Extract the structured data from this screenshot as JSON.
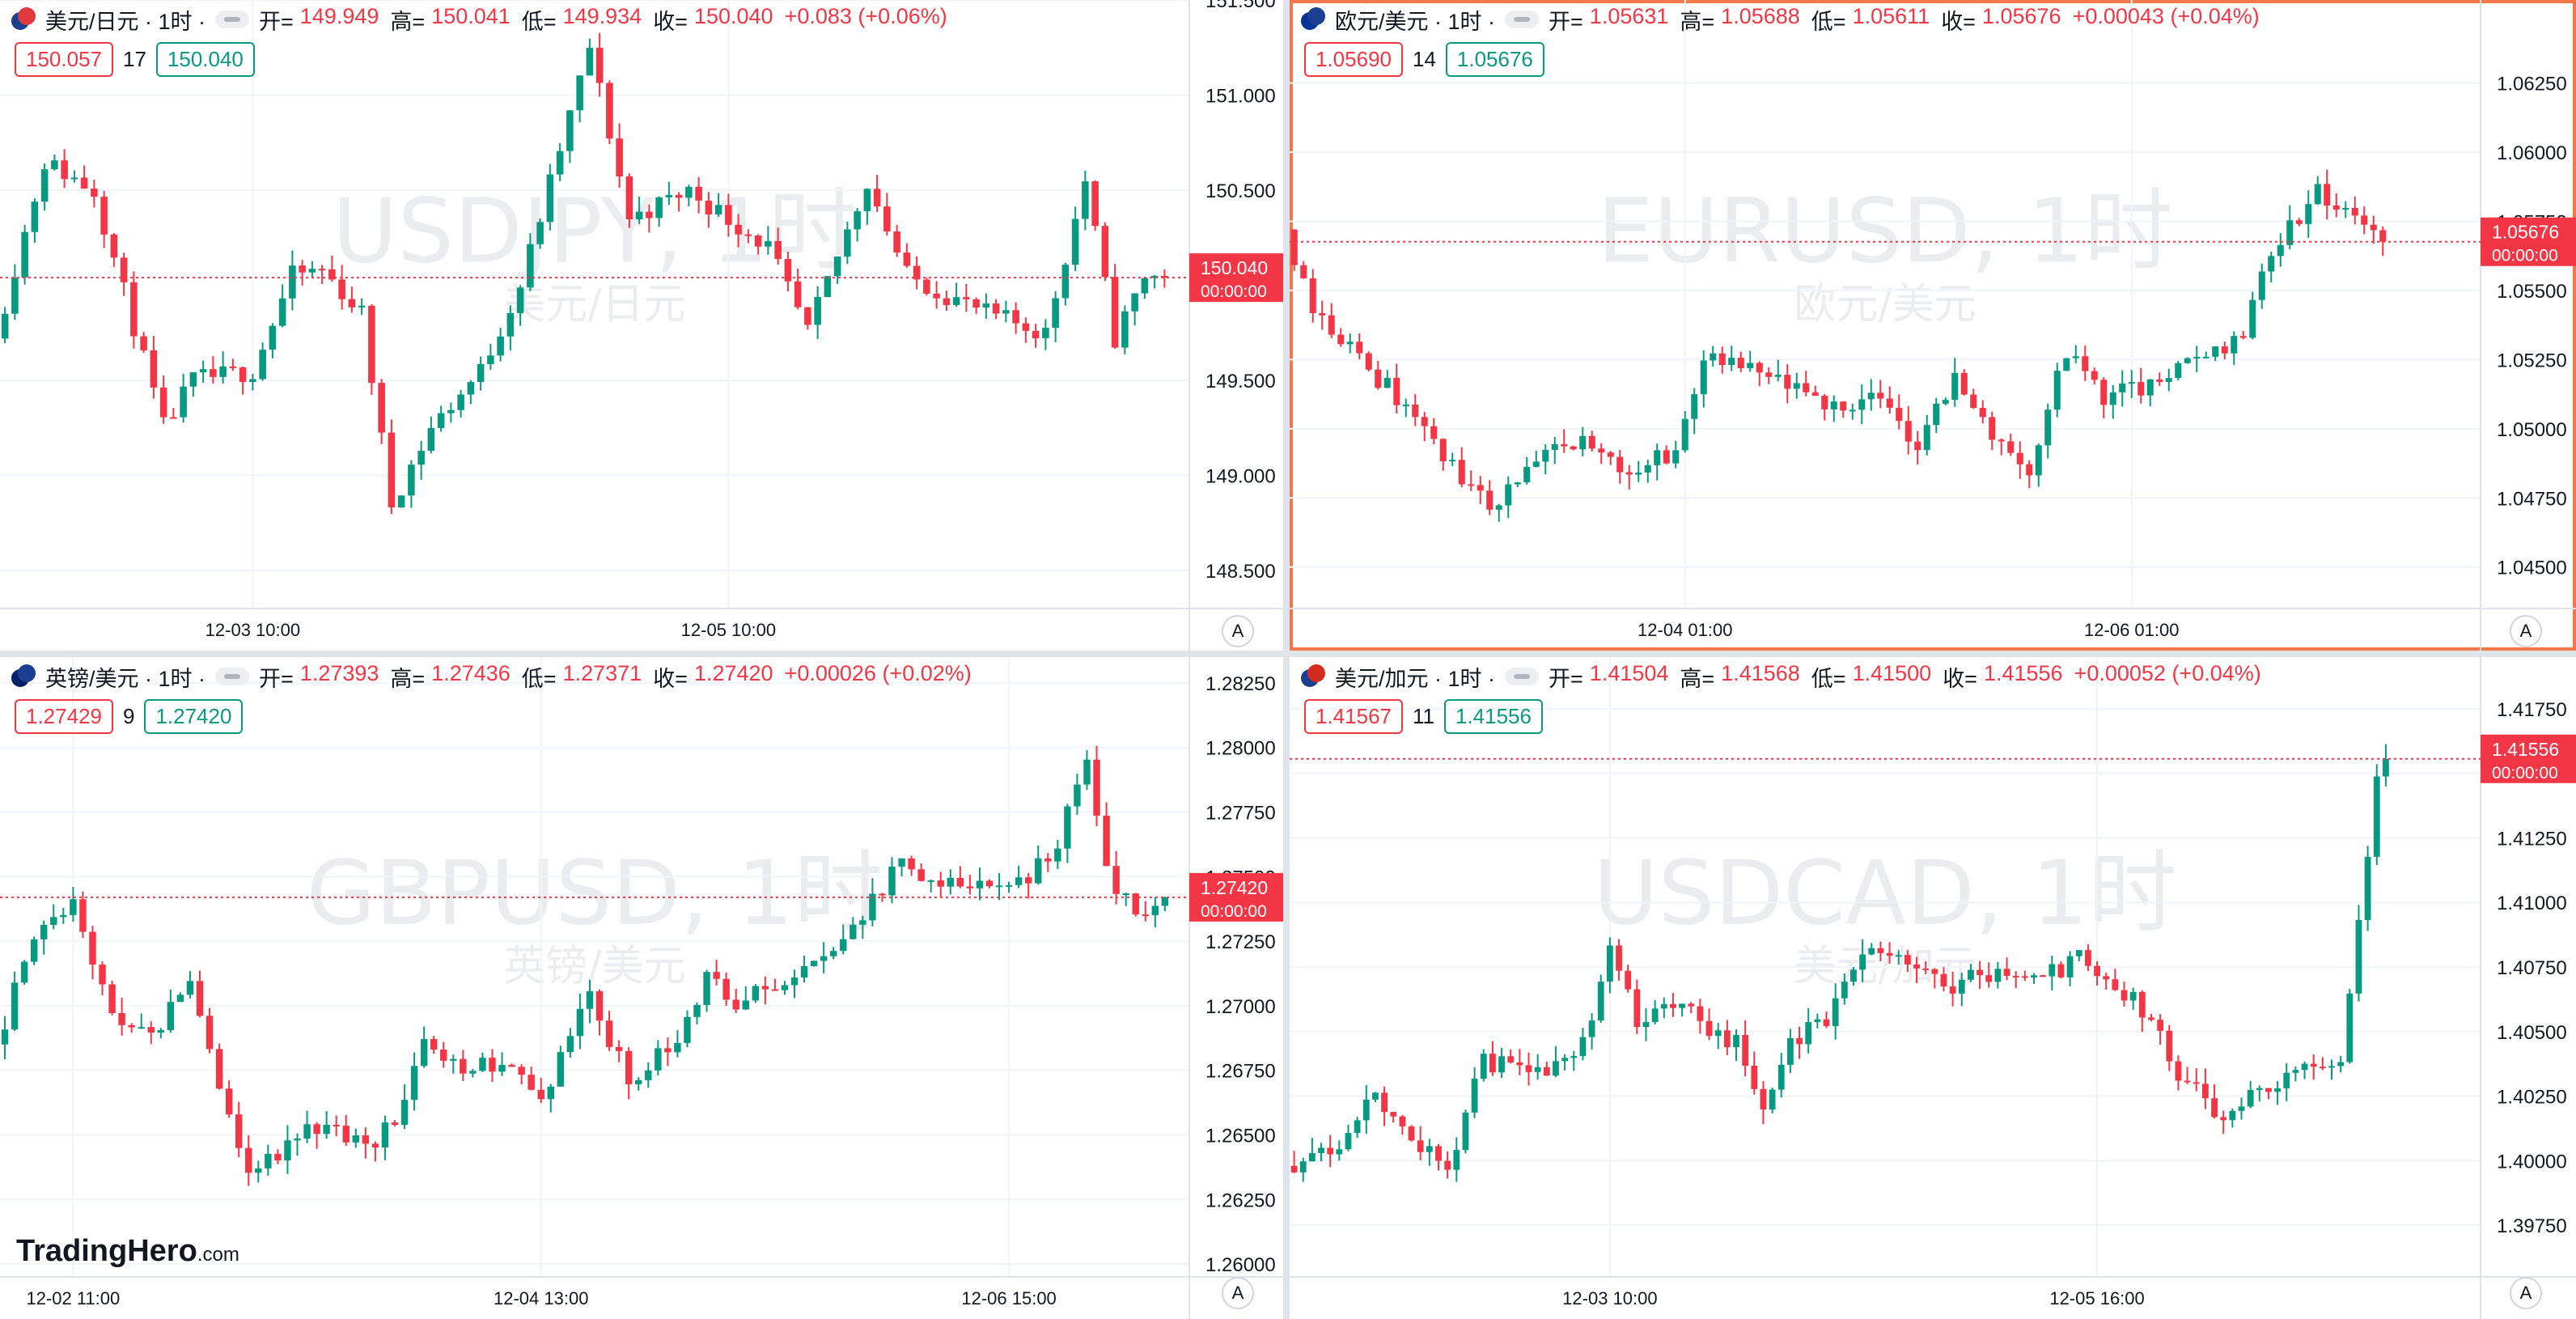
{
  "brand": {
    "name": "TradingHero",
    "suffix": ".com"
  },
  "auto_label": "A",
  "colors": {
    "up": "#089981",
    "down": "#f23645",
    "grid": "#f0f3fa",
    "axis_text": "#131722",
    "watermark": "#ebecef"
  },
  "chart_data": [
    {
      "type": "candlestick",
      "symbol": "USDJPY",
      "title": "美元/日元 · 1时 ·",
      "watermark": "USDJPY, 1时",
      "watermark_sub": "美元/日元",
      "flags": [
        "#1c3f94",
        "#e03a3e"
      ],
      "ohlc": {
        "open_label": "开=",
        "open": "149.949",
        "high_label": "高=",
        "high": "150.041",
        "low_label": "低=",
        "low": "149.934",
        "close_label": "收=",
        "close": "150.040",
        "change": "+0.083 (+0.06%)"
      },
      "bid": "150.057",
      "spread": "17",
      "ask": "150.040",
      "last_price": "150.040",
      "countdown": "00:00:00",
      "ylim": [
        148.3,
        151.5
      ],
      "y_ticks": [
        "151.500",
        "151.000",
        "150.500",
        "149.500",
        "149.000",
        "148.500"
      ],
      "x_ticks": [
        {
          "label": "12-03 10:00",
          "index": 25
        },
        {
          "label": "12-05 10:00",
          "index": 73
        }
      ],
      "candles_shown": 120,
      "bars": 118,
      "start": 149.72,
      "end": 150.04,
      "path": [
        [
          0,
          149.72
        ],
        [
          5,
          150.65
        ],
        [
          10,
          150.5
        ],
        [
          17,
          149.25
        ],
        [
          20,
          149.5
        ],
        [
          26,
          149.55
        ],
        [
          30,
          150.05
        ],
        [
          33,
          150.08
        ],
        [
          37,
          149.85
        ],
        [
          40,
          148.85
        ],
        [
          44,
          149.25
        ],
        [
          49,
          149.55
        ],
        [
          53,
          150.0
        ],
        [
          60,
          151.25
        ],
        [
          64,
          150.35
        ],
        [
          70,
          150.5
        ],
        [
          78,
          150.2
        ],
        [
          82,
          149.75
        ],
        [
          88,
          150.55
        ],
        [
          92,
          150.05
        ],
        [
          96,
          149.95
        ],
        [
          100,
          149.85
        ],
        [
          106,
          149.75
        ],
        [
          110,
          150.55
        ],
        [
          113,
          149.72
        ],
        [
          116,
          150.05
        ],
        [
          118,
          150.04
        ]
      ],
      "seed": 11
    },
    {
      "type": "candlestick",
      "symbol": "EURUSD",
      "title": "欧元/美元 · 1时 ·",
      "watermark": "EURUSD, 1时",
      "watermark_sub": "欧元/美元",
      "flags": [
        "#003399",
        "#1c3f94"
      ],
      "ohlc": {
        "open_label": "开=",
        "open": "1.05631",
        "high_label": "高=",
        "high": "1.05688",
        "low_label": "低=",
        "low": "1.05611",
        "close_label": "收=",
        "close": "1.05676",
        "change": "+0.00043 (+0.04%)"
      },
      "bid": "1.05690",
      "spread": "14",
      "ask": "1.05676",
      "last_price": "1.05676",
      "countdown": "00:00:00",
      "ylim": [
        1.0435,
        1.0655
      ],
      "y_ticks": [
        "1.06250",
        "1.06000",
        "1.05750",
        "1.05500",
        "1.05250",
        "1.05000",
        "1.04750",
        "1.04500"
      ],
      "x_ticks": [
        {
          "label": "12-04 01:00",
          "index": 42
        },
        {
          "label": "12-06 01:00",
          "index": 90
        }
      ],
      "candles_shown": 128,
      "bars": 118,
      "start": 1.0572,
      "end": 1.05676,
      "path": [
        [
          0,
          1.0572
        ],
        [
          3,
          1.0545
        ],
        [
          8,
          1.0525
        ],
        [
          14,
          1.0505
        ],
        [
          18,
          1.0485
        ],
        [
          22,
          1.0472
        ],
        [
          27,
          1.0488
        ],
        [
          32,
          1.0495
        ],
        [
          37,
          1.0485
        ],
        [
          42,
          1.0492
        ],
        [
          45,
          1.0525
        ],
        [
          52,
          1.0518
        ],
        [
          58,
          1.0508
        ],
        [
          63,
          1.0512
        ],
        [
          68,
          1.0495
        ],
        [
          72,
          1.0518
        ],
        [
          76,
          1.0498
        ],
        [
          80,
          1.0485
        ],
        [
          84,
          1.0528
        ],
        [
          88,
          1.0512
        ],
        [
          93,
          1.0515
        ],
        [
          98,
          1.0525
        ],
        [
          103,
          1.0535
        ],
        [
          106,
          1.0565
        ],
        [
          111,
          1.0585
        ],
        [
          116,
          1.0572
        ],
        [
          121,
          1.0575
        ],
        [
          124,
          1.0598
        ],
        [
          126,
          1.0555
        ],
        [
          128,
          1.0548
        ],
        [
          130,
          1.05676
        ]
      ],
      "seed": 23
    },
    {
      "type": "candlestick",
      "symbol": "GBPUSD",
      "title": "英镑/美元 · 1时 ·",
      "watermark": "GBPUSD, 1时",
      "watermark_sub": "英镑/美元",
      "flags": [
        "#012169",
        "#1c3f94"
      ],
      "ohlc": {
        "open_label": "开=",
        "open": "1.27393",
        "high_label": "高=",
        "high": "1.27436",
        "low_label": "低=",
        "low": "1.27371",
        "close_label": "收=",
        "close": "1.27420",
        "change": "+0.00026 (+0.02%)"
      },
      "bid": "1.27429",
      "spread": "9",
      "ask": "1.27420",
      "last_price": "1.27420",
      "countdown": "00:00:00",
      "ylim": [
        1.2595,
        1.2835
      ],
      "y_ticks": [
        "1.28250",
        "1.28000",
        "1.27750",
        "1.27500",
        "1.27250",
        "1.27000",
        "1.26750",
        "1.26500",
        "1.26250",
        "1.26000"
      ],
      "x_ticks": [
        {
          "label": "12-02 11:00",
          "index": 7
        },
        {
          "label": "12-04 13:00",
          "index": 55
        },
        {
          "label": "12-06 15:00",
          "index": 103
        }
      ],
      "candles_shown": 122,
      "bars": 120,
      "start": 1.2685,
      "end": 1.2742,
      "path": [
        [
          0,
          1.2685
        ],
        [
          4,
          1.2725
        ],
        [
          8,
          1.2742
        ],
        [
          12,
          1.2695
        ],
        [
          16,
          1.2688
        ],
        [
          20,
          1.2712
        ],
        [
          23,
          1.2665
        ],
        [
          26,
          1.2638
        ],
        [
          30,
          1.2645
        ],
        [
          34,
          1.2655
        ],
        [
          38,
          1.2645
        ],
        [
          41,
          1.2655
        ],
        [
          44,
          1.2685
        ],
        [
          48,
          1.2675
        ],
        [
          52,
          1.2678
        ],
        [
          56,
          1.2665
        ],
        [
          61,
          1.2702
        ],
        [
          65,
          1.2672
        ],
        [
          69,
          1.2682
        ],
        [
          73,
          1.2712
        ],
        [
          76,
          1.2702
        ],
        [
          82,
          1.2708
        ],
        [
          87,
          1.2725
        ],
        [
          93,
          1.2755
        ],
        [
          99,
          1.2745
        ],
        [
          104,
          1.2748
        ],
        [
          108,
          1.2755
        ],
        [
          112,
          1.2795
        ],
        [
          114,
          1.2755
        ],
        [
          117,
          1.2732
        ],
        [
          120,
          1.2742
        ]
      ],
      "seed": 37
    },
    {
      "type": "candlestick",
      "symbol": "USDCAD",
      "title": "美元/加元 · 1时 ·",
      "watermark": "USDCAD, 1时",
      "watermark_sub": "美元/加元",
      "flags": [
        "#1c3f94",
        "#d52b1e"
      ],
      "ohlc": {
        "open_label": "开=",
        "open": "1.41504",
        "high_label": "高=",
        "high": "1.41568",
        "low_label": "低=",
        "low": "1.41500",
        "close_label": "收=",
        "close": "1.41556",
        "change": "+0.00052 (+0.04%)"
      },
      "bid": "1.41567",
      "spread": "11",
      "ask": "1.41556",
      "last_price": "1.41556",
      "countdown": "00:00:00",
      "ylim": [
        1.3955,
        1.4195
      ],
      "y_ticks": [
        "1.41750",
        "1.41500",
        "1.41250",
        "1.41000",
        "1.40750",
        "1.40500",
        "1.40250",
        "1.40000",
        "1.39750"
      ],
      "x_ticks": [
        {
          "label": "12-03 10:00",
          "index": 35
        },
        {
          "label": "12-05 16:00",
          "index": 89
        }
      ],
      "candles_shown": 132,
      "bars": 122,
      "start": 1.3998,
      "end": 1.41556,
      "path": [
        [
          0,
          1.3998
        ],
        [
          6,
          1.4008
        ],
        [
          10,
          1.4025
        ],
        [
          15,
          1.4005
        ],
        [
          18,
          1.3998
        ],
        [
          22,
          1.4038
        ],
        [
          28,
          1.4035
        ],
        [
          33,
          1.4045
        ],
        [
          36,
          1.4085
        ],
        [
          39,
          1.4055
        ],
        [
          44,
          1.4058
        ],
        [
          50,
          1.4045
        ],
        [
          53,
          1.4018
        ],
        [
          56,
          1.4045
        ],
        [
          60,
          1.4055
        ],
        [
          63,
          1.4078
        ],
        [
          68,
          1.4082
        ],
        [
          73,
          1.4068
        ],
        [
          78,
          1.4072
        ],
        [
          83,
          1.4068
        ],
        [
          88,
          1.4078
        ],
        [
          92,
          1.4068
        ],
        [
          96,
          1.4055
        ],
        [
          99,
          1.4032
        ],
        [
          104,
          1.4018
        ],
        [
          108,
          1.4028
        ],
        [
          113,
          1.4035
        ],
        [
          117,
          1.4042
        ],
        [
          119,
          1.4095
        ],
        [
          121,
          1.4145
        ],
        [
          124,
          1.4152
        ],
        [
          126,
          1.41556
        ]
      ],
      "seed": 53
    }
  ]
}
